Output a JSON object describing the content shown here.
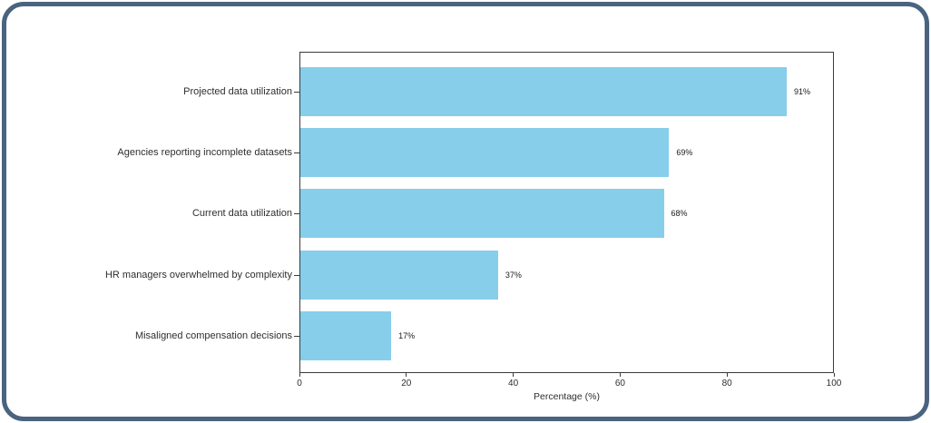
{
  "frame": {
    "border_color": "#4a637f",
    "background": "#ffffff"
  },
  "chart_data": {
    "type": "bar",
    "orientation": "horizontal",
    "title": "",
    "categories": [
      "Projected data utilization",
      "Agencies reporting incomplete datasets",
      "Current data utilization",
      "HR managers overwhelmed by complexity",
      "Misaligned compensation decisions"
    ],
    "values": [
      91,
      69,
      68,
      37,
      17
    ],
    "value_labels": [
      "91%",
      "69%",
      "68%",
      "37%",
      "17%"
    ],
    "xlabel": "Percentage (%)",
    "ylabel": "",
    "xlim": [
      0,
      100
    ],
    "xticks": [
      0,
      20,
      40,
      60,
      80,
      100
    ],
    "grid": false,
    "legend_position": "none",
    "bar_color": "#87CEEB",
    "axis_color": "#3b3b3b",
    "text_color": "#2e2e2e"
  }
}
